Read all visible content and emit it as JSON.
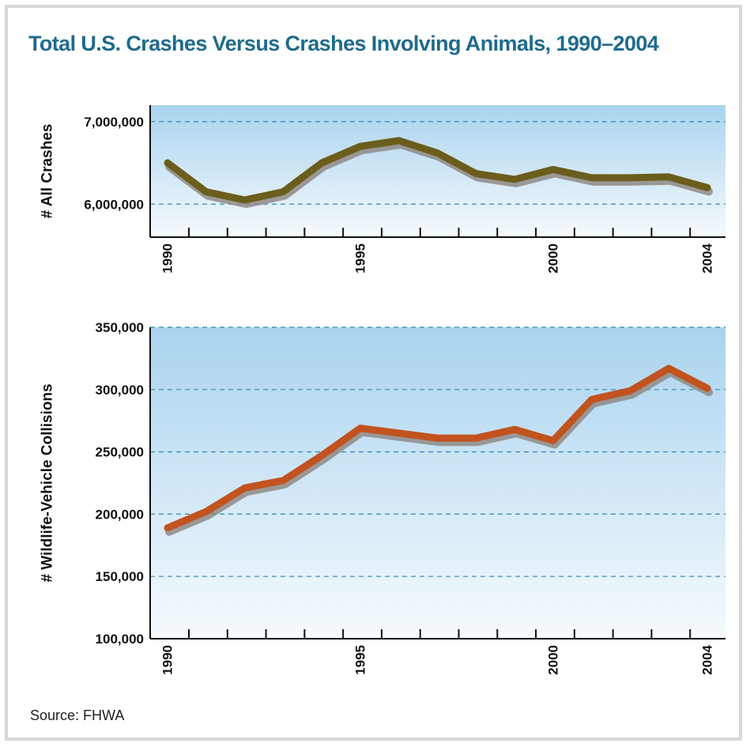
{
  "title": "Total U.S. Crashes Versus Crashes Involving Animals, 1990–2004",
  "source": "Source: FHWA",
  "colors": {
    "title": "#1e6b8c",
    "plot_bg_top": "#a9d3ee",
    "plot_bg_bottom": "#f6fafd",
    "grid": "#2f8cb0",
    "all_crashes_line": "#6b5d1c",
    "wildlife_line": "#c2531f",
    "shadow": "#8f8a86"
  },
  "chart_data": [
    {
      "type": "line",
      "ylabel": "# All Crashes",
      "xlabel": "",
      "x": [
        1990,
        1991,
        1992,
        1993,
        1994,
        1995,
        1996,
        1997,
        1998,
        1999,
        2000,
        2001,
        2002,
        2003,
        2004
      ],
      "xticks": [
        1990,
        1995,
        2000,
        2004
      ],
      "ylim": [
        5600000,
        7200000
      ],
      "yticks": [
        6000000,
        7000000
      ],
      "ytick_labels": [
        "6,000,000",
        "7,000,000"
      ],
      "grid": true,
      "series": [
        {
          "values": [
            6500000,
            6150000,
            6050000,
            6150000,
            6500000,
            6700000,
            6770000,
            6620000,
            6370000,
            6300000,
            6420000,
            6320000,
            6320000,
            6330000,
            6200000
          ]
        }
      ]
    },
    {
      "type": "line",
      "ylabel": "# Wildlife-Vehicle Collisions",
      "xlabel": "",
      "x": [
        1990,
        1991,
        1992,
        1993,
        1994,
        1995,
        1996,
        1997,
        1998,
        1999,
        2000,
        2001,
        2002,
        2003,
        2004
      ],
      "xticks": [
        1990,
        1995,
        2000,
        2004
      ],
      "ylim": [
        100000,
        350000
      ],
      "yticks": [
        100000,
        150000,
        200000,
        250000,
        300000,
        350000
      ],
      "ytick_labels": [
        "100,000",
        "150,000",
        "200,000",
        "250,000",
        "300,000",
        "350,000"
      ],
      "grid": true,
      "series": [
        {
          "values": [
            189000,
            202000,
            221000,
            227000,
            247000,
            269000,
            265000,
            261000,
            261000,
            268000,
            259000,
            292000,
            299000,
            317000,
            301000
          ]
        }
      ]
    }
  ]
}
